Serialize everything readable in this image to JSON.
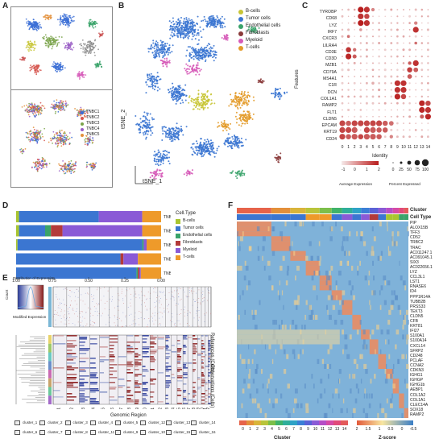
{
  "panels": {
    "A": "A",
    "B": "B",
    "C": "C",
    "D": "D",
    "E": "E",
    "F": "F"
  },
  "panelA": {
    "legend": [
      "TNBC1",
      "TNBC2",
      "TNBC3",
      "TNBC4",
      "TNBC5"
    ],
    "colors": [
      "#3b6fd6",
      "#d6564f",
      "#7aa34a",
      "#9a5ec6",
      "#e38f3a"
    ]
  },
  "panelB": {
    "legend": [
      "B-cells",
      "Tumor cells",
      "Endothelial cells",
      "Fibroblasts",
      "Myeloid",
      "T-cells"
    ],
    "colors": [
      "#c8c536",
      "#3b76d1",
      "#3aa36a",
      "#8a3a3a",
      "#d65ab8",
      "#e39b2a"
    ],
    "xlabel": "tSNE_1",
    "ylabel": "tSNE_2"
  },
  "panelC": {
    "genes": [
      "TYROBP",
      "CD68",
      "LYZ",
      "IRF7",
      "CXCR3",
      "LILRA4",
      "CD3E",
      "CD3D",
      "MZB1",
      "CD79A",
      "MS4A1",
      "C1R",
      "DCN",
      "COL1A1",
      "RAMP2",
      "FLT1",
      "CLDN5",
      "EPCAM",
      "KRT19",
      "CD24"
    ],
    "clusters": [
      "0",
      "1",
      "2",
      "3",
      "4",
      "5",
      "6",
      "7",
      "8",
      "9",
      "10",
      "11",
      "12",
      "13",
      "14"
    ],
    "ylabel": "Features",
    "xlabel": "Identity",
    "legend_expr": "Average Expression",
    "legend_pct": "Percent Expressed",
    "expr_ticks": [
      "-1",
      "0",
      "1",
      "2"
    ],
    "pct_ticks": [
      "0",
      "25",
      "50",
      "75",
      "100"
    ]
  },
  "panelD": {
    "samples": [
      "TNBC5",
      "TNBC4",
      "TNBC3",
      "TNBC2",
      "TNBC1"
    ],
    "legend_title": "Cell.Type",
    "celltypes": [
      "B-cells",
      "Tumor cells",
      "Endothelial cells",
      "Fibroblasts",
      "Myeloid",
      "T-cells"
    ],
    "colors": [
      "#a9c530",
      "#3b76d1",
      "#3aa36a",
      "#b33a3a",
      "#8a5ad6",
      "#ee9a2a"
    ],
    "xticks": [
      "1.00",
      "0.75",
      "0.50",
      "0.25",
      "0.00"
    ],
    "proportions": [
      [
        0.02,
        0.55,
        0.0,
        0.0,
        0.3,
        0.13
      ],
      [
        0.02,
        0.18,
        0.04,
        0.08,
        0.55,
        0.13
      ],
      [
        0.01,
        0.86,
        0.01,
        0.0,
        0.02,
        0.1
      ],
      [
        0.0,
        0.72,
        0.0,
        0.02,
        0.1,
        0.16
      ],
      [
        0.0,
        0.83,
        0.01,
        0.01,
        0.01,
        0.14
      ]
    ]
  },
  "panelE": {
    "legend_title": "Distribution of Expression",
    "legend_xlabel": "Modified Expression",
    "legend_ylabel": "Count",
    "ref_label": "References (Cells)",
    "obs_label": "Observations (Cells)",
    "xlabel": "Genomic Region",
    "chromosomes": [
      "chr1",
      "chr2",
      "chr3",
      "chr4",
      "chr5",
      "chr6",
      "chr7",
      "chr8",
      "chr9",
      "chr10",
      "chr11",
      "chr12",
      "chr13",
      "chr14",
      "chr15",
      "chr16",
      "chr17",
      "chr18",
      "chr19",
      "chr20",
      "chr21",
      "chr22"
    ],
    "cluster_keys": [
      "cluster_1",
      "cluster_2",
      "cluster_3",
      "cluster_4",
      "cluster_5",
      "cluster_12",
      "cluster_13",
      "cluster_14",
      "cluster_6",
      "cluster_7",
      "cluster_8",
      "cluster_11",
      "cluster_9",
      "cluster_10",
      "cluster_15",
      "cluster_16"
    ]
  },
  "panelF": {
    "header_cluster": "Cluster",
    "header_celltype": "Cell Type",
    "genes": [
      "PIP",
      "ALOX15B",
      "TFF3",
      "CD52",
      "TRBC2",
      "TRAC",
      "AC011247.1",
      "AC091045.1",
      "SIX3",
      "AC022656.1",
      "LYZ",
      "CCL3L1",
      "LST1",
      "RNASE6",
      "ID4",
      "PPP1R14A",
      "TUBB2B",
      "PRSS33",
      "TEKT3",
      "CLDN5",
      "CFB",
      "KRT81",
      "IFI27",
      "S100A1",
      "S100A14",
      "CXCL14",
      "SFRP2",
      "CD248",
      "PCLAF",
      "CCNA2",
      "CDKN3",
      "IGHG1",
      "IGHGP",
      "IGHG1b",
      "AEBP1",
      "COL1A2",
      "COL1A1",
      "CLEC14A",
      "SOX18",
      "RAMP2"
    ],
    "cluster_label": "Cluster",
    "zscore_label": "Z-score",
    "cluster_ticks": [
      "0",
      "1",
      "2",
      "3",
      "4",
      "5",
      "6",
      "7",
      "8",
      "9",
      "10",
      "11",
      "12",
      "13",
      "14"
    ],
    "z_ticks": [
      "2",
      "1.5",
      "1",
      "0.5",
      "0",
      "-0.5"
    ],
    "cluster_colors": [
      "#e6634a",
      "#e38f3a",
      "#d9b43a",
      "#b9c43a",
      "#7cbf4a",
      "#3fb36a",
      "#2fae9a",
      "#2ea2c6",
      "#3b7fd6",
      "#5a62d6",
      "#8a5ad6",
      "#b54ec6",
      "#d64aa6",
      "#e04a7a",
      "#e35a5a"
    ]
  }
}
